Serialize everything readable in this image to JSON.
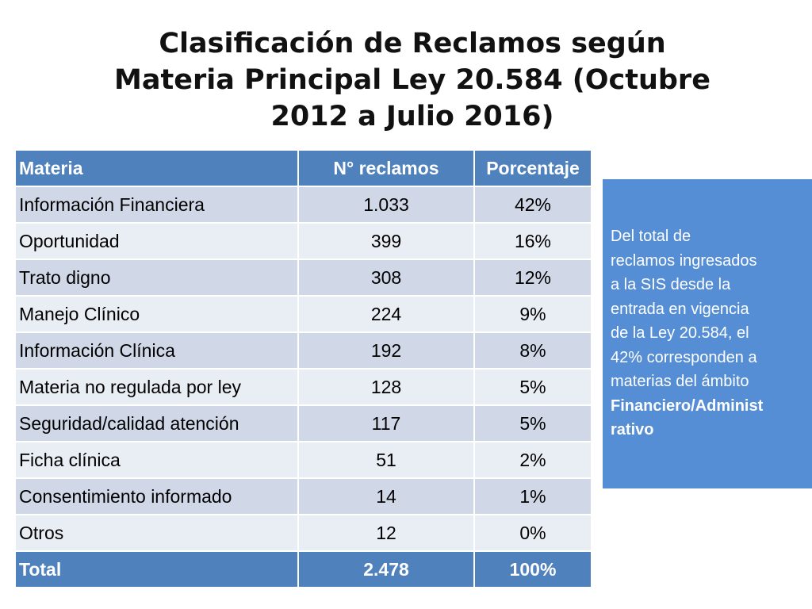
{
  "title": {
    "line1": "Clasificación de Reclamos según",
    "line2": "Materia Principal Ley 20.584 (Octubre",
    "line3": "2012 a Julio 2016)"
  },
  "table": {
    "headers": [
      "Materia",
      "N° reclamos",
      "Porcentaje"
    ],
    "rows": [
      {
        "materia": "Información Financiera",
        "reclamos": "1.033",
        "porcentaje": "42%"
      },
      {
        "materia": "Oportunidad",
        "reclamos": "399",
        "porcentaje": "16%"
      },
      {
        "materia": "Trato digno",
        "reclamos": "308",
        "porcentaje": "12%"
      },
      {
        "materia": "Manejo Clínico",
        "reclamos": "224",
        "porcentaje": "9%"
      },
      {
        "materia": "Información Clínica",
        "reclamos": "192",
        "porcentaje": "8%"
      },
      {
        "materia": "Materia no regulada por ley",
        "reclamos": "128",
        "porcentaje": "5%"
      },
      {
        "materia": "Seguridad/calidad atención",
        "reclamos": "117",
        "porcentaje": "5%"
      },
      {
        "materia": "Ficha clínica",
        "reclamos": "51",
        "porcentaje": "2%"
      },
      {
        "materia": "Consentimiento informado",
        "reclamos": "14",
        "porcentaje": "1%"
      },
      {
        "materia": "Otros",
        "reclamos": "12",
        "porcentaje": "0%"
      }
    ],
    "total": {
      "materia": "Total",
      "reclamos": "2.478",
      "porcentaje": "100%"
    }
  },
  "callout": {
    "lines": [
      "Del total de",
      "reclamos ingresados",
      "a la SIS desde la",
      "entrada en vigencia",
      "de la Ley 20.584, el",
      "42% corresponden a",
      "materias del ámbito"
    ],
    "bold_lines": [
      "Financiero/Administ",
      "rativo"
    ]
  },
  "colors": {
    "header_bg": "#4f81bd",
    "row_odd": "#d0d8e8",
    "row_even": "#e9edf4",
    "callout_bg": "#558ed5"
  }
}
